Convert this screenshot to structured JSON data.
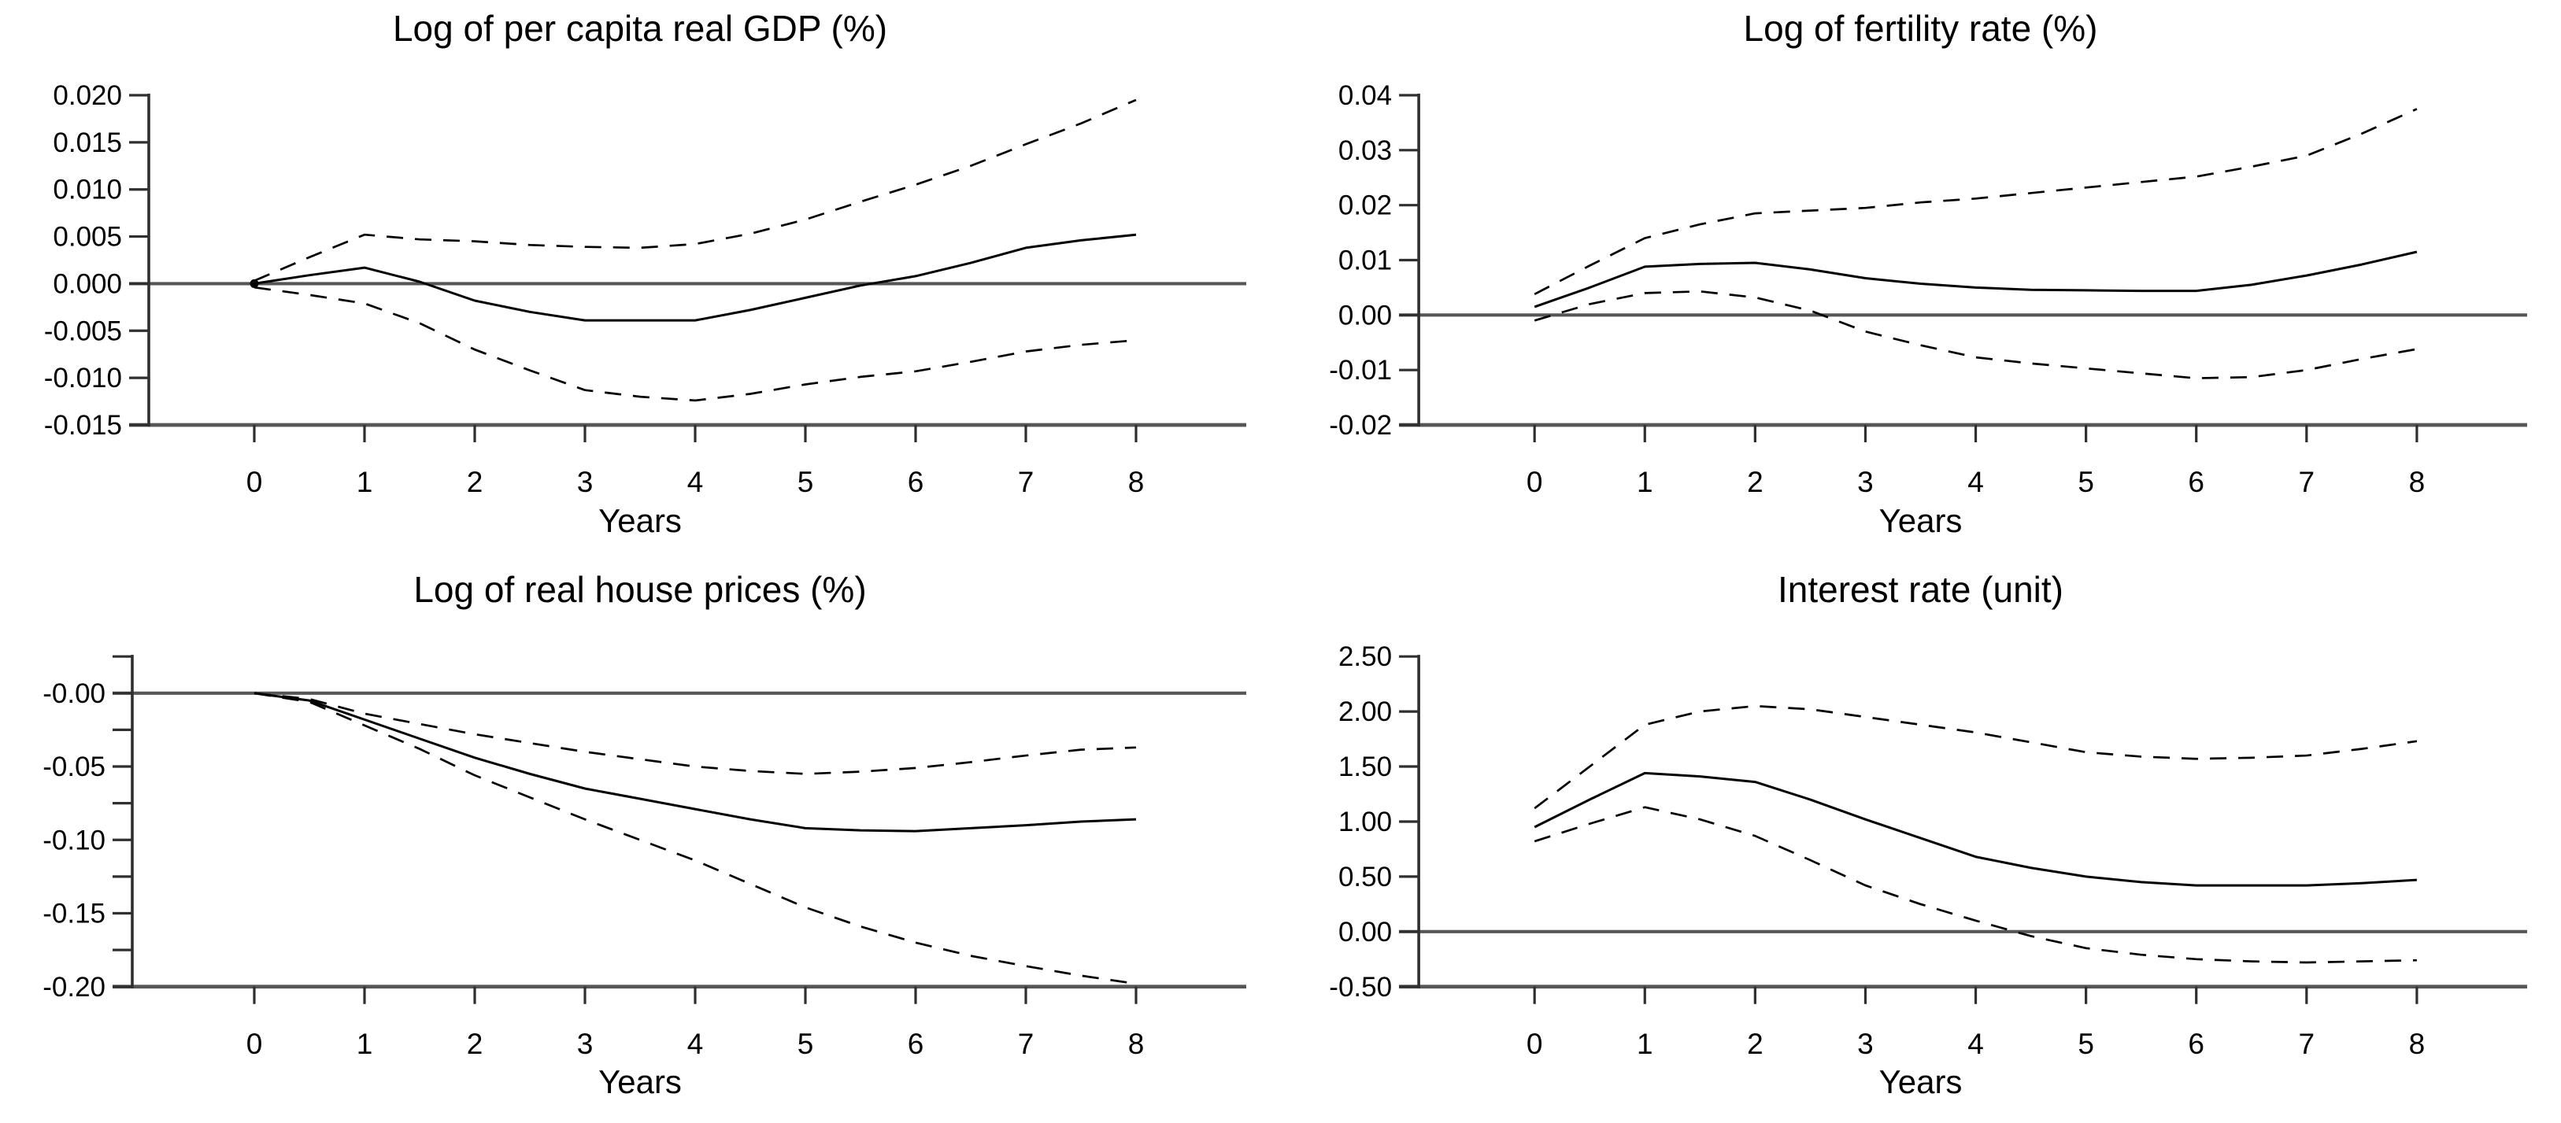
{
  "figure": {
    "background": "#ffffff",
    "text_color": "#000000",
    "axis_color": "#2f2f2f",
    "reference_line_color": "#565656",
    "curve_color": "#000000"
  },
  "chart_data": [
    {
      "type": "line",
      "title": "Log of per capita real GDP (%)",
      "xlabel": "Years",
      "xlim": [
        -1.0,
        9.0
      ],
      "ylim": [
        -0.015,
        0.02
      ],
      "grid": false,
      "legend": "none",
      "zero_line": true,
      "origin_marker": true,
      "xticks": [
        0,
        1,
        2,
        3,
        4,
        5,
        6,
        7,
        8
      ],
      "yticks": [
        {
          "v": 0.02,
          "label": "0.020"
        },
        {
          "v": 0.015,
          "label": "0.015"
        },
        {
          "v": 0.01,
          "label": "0.010"
        },
        {
          "v": 0.005,
          "label": "0.005"
        },
        {
          "v": 0.0,
          "label": "0.000"
        },
        {
          "v": -0.005,
          "label": "-0.005"
        },
        {
          "v": -0.01,
          "label": "-0.010"
        },
        {
          "v": -0.015,
          "label": "-0.015"
        }
      ],
      "x": [
        0,
        0.5,
        1,
        1.5,
        2,
        2.5,
        3,
        3.5,
        4,
        4.5,
        5,
        5.5,
        6,
        6.5,
        7,
        7.5,
        8
      ],
      "series": [
        {
          "name": "point-estimate",
          "style": "solid",
          "values": [
            0.0,
            0.0009,
            0.0017,
            0.0002,
            -0.0018,
            -0.003,
            -0.0039,
            -0.0039,
            -0.0039,
            -0.0028,
            -0.0015,
            -0.0002,
            0.0008,
            0.0022,
            0.0038,
            0.0046,
            0.0052
          ]
        },
        {
          "name": "upper-confidence-band",
          "style": "dashed",
          "values": [
            0.0003,
            0.0028,
            0.0052,
            0.0047,
            0.0045,
            0.0041,
            0.0039,
            0.0038,
            0.0042,
            0.0053,
            0.0068,
            0.0087,
            0.0105,
            0.0125,
            0.0148,
            0.017,
            0.0195
          ]
        },
        {
          "name": "lower-confidence-band",
          "style": "dashed",
          "values": [
            -0.0004,
            -0.0012,
            -0.0021,
            -0.0042,
            -0.007,
            -0.0092,
            -0.0113,
            -0.012,
            -0.0124,
            -0.0117,
            -0.0107,
            -0.0099,
            -0.0093,
            -0.0083,
            -0.0072,
            -0.0065,
            -0.006
          ]
        }
      ]
    },
    {
      "type": "line",
      "title": "Log of fertility rate (%)",
      "xlabel": "Years",
      "xlim": [
        -1.0,
        9.0
      ],
      "ylim": [
        -0.02,
        0.04
      ],
      "grid": false,
      "legend": "none",
      "zero_line": true,
      "origin_marker": false,
      "xticks": [
        0,
        1,
        2,
        3,
        4,
        5,
        6,
        7,
        8
      ],
      "yticks": [
        {
          "v": 0.04,
          "label": "0.04"
        },
        {
          "v": 0.03,
          "label": "0.03"
        },
        {
          "v": 0.02,
          "label": "0.02"
        },
        {
          "v": 0.01,
          "label": "0.01"
        },
        {
          "v": 0.0,
          "label": "0.00"
        },
        {
          "v": -0.01,
          "label": "-0.01"
        },
        {
          "v": -0.02,
          "label": "-0.02"
        }
      ],
      "x": [
        0,
        0.5,
        1,
        1.5,
        2,
        2.5,
        3,
        3.5,
        4,
        4.5,
        5,
        5.5,
        6,
        6.5,
        7,
        7.5,
        8
      ],
      "series": [
        {
          "name": "point-estimate",
          "style": "solid",
          "values": [
            0.0015,
            0.005,
            0.0088,
            0.0093,
            0.0095,
            0.0083,
            0.0067,
            0.0057,
            0.005,
            0.0046,
            0.0045,
            0.0044,
            0.0044,
            0.0055,
            0.0072,
            0.0092,
            0.0115
          ]
        },
        {
          "name": "upper-confidence-band",
          "style": "dashed",
          "values": [
            0.0038,
            0.009,
            0.014,
            0.0165,
            0.0185,
            0.019,
            0.0195,
            0.0205,
            0.0212,
            0.0222,
            0.0232,
            0.0242,
            0.0252,
            0.027,
            0.029,
            0.033,
            0.0375
          ]
        },
        {
          "name": "lower-confidence-band",
          "style": "dashed",
          "values": [
            -0.001,
            0.002,
            0.004,
            0.0043,
            0.0032,
            0.0008,
            -0.003,
            -0.0055,
            -0.0077,
            -0.0088,
            -0.0097,
            -0.0106,
            -0.0115,
            -0.0113,
            -0.01,
            -0.008,
            -0.0062
          ]
        }
      ]
    },
    {
      "type": "line",
      "title": "Log of real house prices (%)",
      "xlabel": "Years",
      "xlim": [
        -1.0,
        9.0
      ],
      "ylim": [
        -0.2,
        0.025
      ],
      "grid": false,
      "legend": "none",
      "zero_line": true,
      "origin_marker": false,
      "xticks": [
        0,
        1,
        2,
        3,
        4,
        5,
        6,
        7,
        8
      ],
      "yticks": [
        {
          "v": 0.025,
          "label": ""
        },
        {
          "v": 0.0,
          "label": "-0.00"
        },
        {
          "v": -0.025,
          "label": ""
        },
        {
          "v": -0.05,
          "label": "-0.05"
        },
        {
          "v": -0.075,
          "label": ""
        },
        {
          "v": -0.1,
          "label": "-0.10"
        },
        {
          "v": -0.125,
          "label": ""
        },
        {
          "v": -0.15,
          "label": "-0.15"
        },
        {
          "v": -0.175,
          "label": ""
        },
        {
          "v": -0.2,
          "label": "-0.20"
        }
      ],
      "x": [
        0,
        0.5,
        1,
        1.5,
        2,
        2.5,
        3,
        3.5,
        4,
        4.5,
        5,
        5.5,
        6,
        6.5,
        7,
        7.5,
        8
      ],
      "series": [
        {
          "name": "point-estimate",
          "style": "solid",
          "values": [
            0.0,
            -0.005,
            -0.018,
            -0.031,
            -0.044,
            -0.055,
            -0.065,
            -0.072,
            -0.079,
            -0.086,
            -0.092,
            -0.0935,
            -0.094,
            -0.092,
            -0.09,
            -0.0875,
            -0.086
          ]
        },
        {
          "name": "upper-confidence-band",
          "style": "dashed",
          "values": [
            0.0,
            -0.004,
            -0.014,
            -0.021,
            -0.028,
            -0.034,
            -0.04,
            -0.045,
            -0.05,
            -0.053,
            -0.055,
            -0.0535,
            -0.051,
            -0.047,
            -0.0425,
            -0.0385,
            -0.037
          ]
        },
        {
          "name": "lower-confidence-band",
          "style": "dashed",
          "values": [
            0.0,
            -0.006,
            -0.022,
            -0.038,
            -0.056,
            -0.071,
            -0.086,
            -0.1,
            -0.114,
            -0.13,
            -0.146,
            -0.159,
            -0.17,
            -0.179,
            -0.186,
            -0.1925,
            -0.198
          ]
        }
      ]
    },
    {
      "type": "line",
      "title": "Interest rate (unit)",
      "xlabel": "Years",
      "xlim": [
        -1.0,
        9.0
      ],
      "ylim": [
        -0.5,
        2.5
      ],
      "grid": false,
      "legend": "none",
      "zero_line": true,
      "origin_marker": false,
      "xticks": [
        0,
        1,
        2,
        3,
        4,
        5,
        6,
        7,
        8
      ],
      "yticks": [
        {
          "v": 2.5,
          "label": "2.50"
        },
        {
          "v": 2.0,
          "label": "2.00"
        },
        {
          "v": 1.5,
          "label": "1.50"
        },
        {
          "v": 1.0,
          "label": "1.00"
        },
        {
          "v": 0.5,
          "label": "0.50"
        },
        {
          "v": 0.0,
          "label": "0.00"
        },
        {
          "v": -0.5,
          "label": "-0.50"
        }
      ],
      "x": [
        0,
        0.5,
        1,
        1.5,
        2,
        2.5,
        3,
        3.5,
        4,
        4.5,
        5,
        5.5,
        6,
        6.5,
        7,
        7.5,
        8
      ],
      "series": [
        {
          "name": "point-estimate",
          "style": "solid",
          "values": [
            0.95,
            1.2,
            1.44,
            1.41,
            1.36,
            1.2,
            1.02,
            0.85,
            0.68,
            0.58,
            0.5,
            0.45,
            0.42,
            0.42,
            0.42,
            0.44,
            0.47
          ]
        },
        {
          "name": "upper-confidence-band",
          "style": "dashed",
          "values": [
            1.12,
            1.5,
            1.88,
            2.0,
            2.05,
            2.02,
            1.95,
            1.88,
            1.81,
            1.72,
            1.63,
            1.59,
            1.57,
            1.58,
            1.6,
            1.66,
            1.73
          ]
        },
        {
          "name": "lower-confidence-band",
          "style": "dashed",
          "values": [
            0.82,
            0.98,
            1.13,
            1.02,
            0.87,
            0.65,
            0.42,
            0.25,
            0.1,
            -0.04,
            -0.15,
            -0.21,
            -0.25,
            -0.27,
            -0.28,
            -0.27,
            -0.26
          ]
        }
      ]
    }
  ]
}
